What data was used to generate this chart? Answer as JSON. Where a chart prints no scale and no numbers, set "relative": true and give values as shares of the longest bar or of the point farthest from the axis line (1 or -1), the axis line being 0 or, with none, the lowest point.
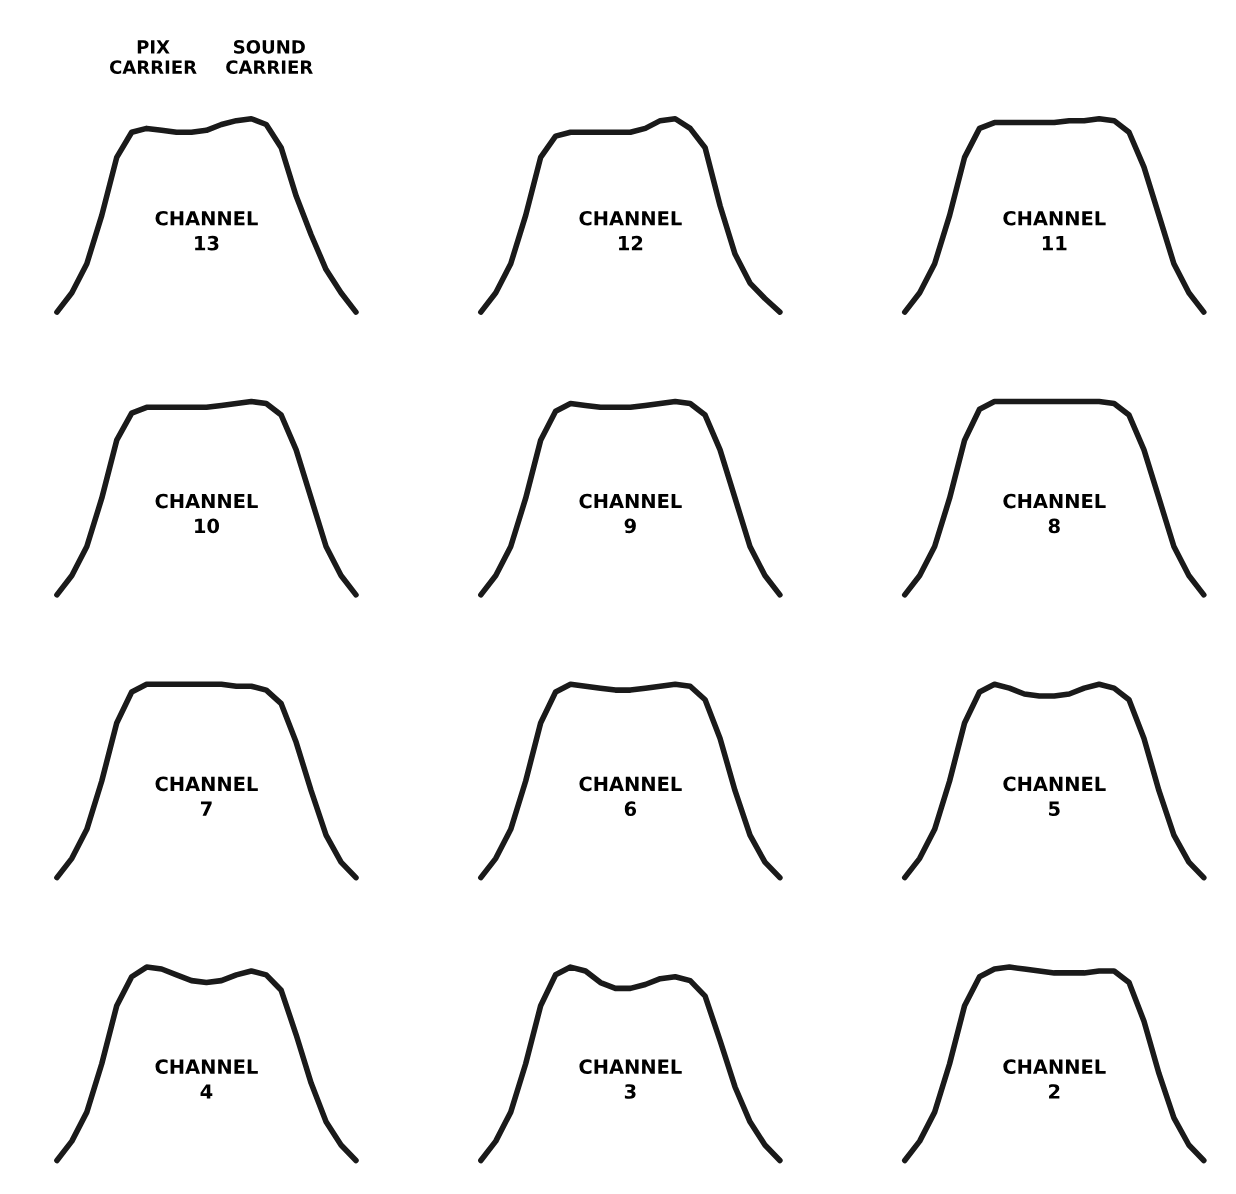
{
  "chart_data": [
    {
      "type": "line",
      "relative": true,
      "color": "#1a1a1a",
      "categories": [
        null,
        null,
        null,
        null,
        null,
        null,
        null,
        null,
        null,
        null,
        null,
        null,
        null,
        null,
        null,
        null,
        null,
        null,
        null,
        null,
        null
      ],
      "values": [
        0,
        0.1,
        0.25,
        0.5,
        0.8,
        0.93,
        0.95,
        0.94,
        0.93,
        0.93,
        0.94,
        0.97,
        0.99,
        1.0,
        0.97,
        0.85,
        0.6,
        0.4,
        0.22,
        0.1,
        0
      ],
      "annotations": [
        "PIX\nCARRIER",
        "SOUND\nCARRIER",
        "CHANNEL",
        "13"
      ]
    },
    {
      "type": "line",
      "relative": true,
      "color": "#1a1a1a",
      "categories": [
        null,
        null,
        null,
        null,
        null,
        null,
        null,
        null,
        null,
        null,
        null,
        null,
        null,
        null,
        null,
        null,
        null,
        null,
        null,
        null,
        null
      ],
      "values": [
        0,
        0.1,
        0.25,
        0.5,
        0.8,
        0.91,
        0.93,
        0.93,
        0.93,
        0.93,
        0.93,
        0.95,
        0.99,
        1.0,
        0.95,
        0.85,
        0.55,
        0.3,
        0.15,
        0.07,
        0
      ],
      "annotations": [
        "CHANNEL",
        "12"
      ]
    },
    {
      "type": "line",
      "relative": true,
      "color": "#1a1a1a",
      "categories": [
        null,
        null,
        null,
        null,
        null,
        null,
        null,
        null,
        null,
        null,
        null,
        null,
        null,
        null,
        null,
        null,
        null,
        null,
        null,
        null,
        null
      ],
      "values": [
        0,
        0.1,
        0.25,
        0.5,
        0.8,
        0.95,
        0.98,
        0.98,
        0.98,
        0.98,
        0.98,
        0.99,
        0.99,
        1.0,
        0.99,
        0.93,
        0.75,
        0.5,
        0.25,
        0.1,
        0
      ],
      "annotations": [
        "CHANNEL",
        "11"
      ]
    },
    {
      "type": "line",
      "relative": true,
      "color": "#1a1a1a",
      "categories": [
        null,
        null,
        null,
        null,
        null,
        null,
        null,
        null,
        null,
        null,
        null,
        null,
        null,
        null,
        null,
        null,
        null,
        null,
        null,
        null,
        null
      ],
      "values": [
        0,
        0.1,
        0.25,
        0.5,
        0.8,
        0.94,
        0.97,
        0.97,
        0.97,
        0.97,
        0.97,
        0.98,
        0.99,
        1.0,
        0.99,
        0.93,
        0.75,
        0.5,
        0.25,
        0.1,
        0
      ],
      "annotations": [
        "CHANNEL",
        "10"
      ]
    },
    {
      "type": "line",
      "relative": true,
      "color": "#1a1a1a",
      "categories": [
        null,
        null,
        null,
        null,
        null,
        null,
        null,
        null,
        null,
        null,
        null,
        null,
        null,
        null,
        null,
        null,
        null,
        null,
        null,
        null,
        null
      ],
      "values": [
        0,
        0.1,
        0.25,
        0.5,
        0.8,
        0.95,
        0.99,
        0.98,
        0.97,
        0.97,
        0.97,
        0.98,
        0.99,
        1.0,
        0.99,
        0.93,
        0.75,
        0.5,
        0.25,
        0.1,
        0
      ],
      "annotations": [
        "CHANNEL",
        "9"
      ]
    },
    {
      "type": "line",
      "relative": true,
      "color": "#1a1a1a",
      "categories": [
        null,
        null,
        null,
        null,
        null,
        null,
        null,
        null,
        null,
        null,
        null,
        null,
        null,
        null,
        null,
        null,
        null,
        null,
        null,
        null,
        null
      ],
      "values": [
        0,
        0.1,
        0.25,
        0.5,
        0.8,
        0.96,
        1.0,
        1.0,
        1.0,
        1.0,
        1.0,
        1.0,
        1.0,
        1.0,
        0.99,
        0.93,
        0.75,
        0.5,
        0.25,
        0.1,
        0
      ],
      "annotations": [
        "CHANNEL",
        "8"
      ]
    },
    {
      "type": "line",
      "relative": true,
      "color": "#1a1a1a",
      "categories": [
        null,
        null,
        null,
        null,
        null,
        null,
        null,
        null,
        null,
        null,
        null,
        null,
        null,
        null,
        null,
        null,
        null,
        null,
        null,
        null,
        null
      ],
      "values": [
        0,
        0.1,
        0.25,
        0.5,
        0.8,
        0.96,
        1.0,
        1.0,
        1.0,
        1.0,
        1.0,
        1.0,
        0.99,
        0.99,
        0.97,
        0.9,
        0.7,
        0.45,
        0.22,
        0.08,
        0
      ],
      "annotations": [
        "CHANNEL",
        "7"
      ]
    },
    {
      "type": "line",
      "relative": true,
      "color": "#1a1a1a",
      "categories": [
        null,
        null,
        null,
        null,
        null,
        null,
        null,
        null,
        null,
        null,
        null,
        null,
        null,
        null,
        null,
        null,
        null,
        null,
        null,
        null,
        null
      ],
      "values": [
        0,
        0.1,
        0.25,
        0.5,
        0.8,
        0.96,
        1.0,
        0.99,
        0.98,
        0.97,
        0.97,
        0.98,
        0.99,
        1.0,
        0.99,
        0.92,
        0.72,
        0.45,
        0.22,
        0.08,
        0
      ],
      "annotations": [
        "CHANNEL",
        "6"
      ]
    },
    {
      "type": "line",
      "relative": true,
      "color": "#1a1a1a",
      "categories": [
        null,
        null,
        null,
        null,
        null,
        null,
        null,
        null,
        null,
        null,
        null,
        null,
        null,
        null,
        null,
        null,
        null,
        null,
        null,
        null,
        null
      ],
      "values": [
        0,
        0.1,
        0.25,
        0.5,
        0.8,
        0.96,
        1.0,
        0.98,
        0.95,
        0.94,
        0.94,
        0.95,
        0.98,
        1.0,
        0.98,
        0.92,
        0.72,
        0.45,
        0.22,
        0.08,
        0
      ],
      "annotations": [
        "CHANNEL",
        "5"
      ]
    },
    {
      "type": "line",
      "relative": true,
      "color": "#1a1a1a",
      "categories": [
        null,
        null,
        null,
        null,
        null,
        null,
        null,
        null,
        null,
        null,
        null,
        null,
        null,
        null,
        null,
        null,
        null,
        null,
        null,
        null,
        null
      ],
      "values": [
        0,
        0.1,
        0.25,
        0.5,
        0.8,
        0.95,
        1.0,
        0.99,
        0.96,
        0.93,
        0.92,
        0.93,
        0.96,
        0.98,
        0.96,
        0.88,
        0.65,
        0.4,
        0.2,
        0.08,
        0
      ],
      "annotations": [
        "CHANNEL",
        "4"
      ]
    },
    {
      "type": "line",
      "relative": true,
      "color": "#1a1a1a",
      "categories": [
        null,
        null,
        null,
        null,
        null,
        null,
        null,
        null,
        null,
        null,
        null,
        null,
        null,
        null,
        null,
        null,
        null,
        null,
        null,
        null,
        null
      ],
      "values": [
        0,
        0.1,
        0.25,
        0.5,
        0.8,
        0.96,
        1.0,
        0.98,
        0.92,
        0.89,
        0.89,
        0.91,
        0.94,
        0.95,
        0.93,
        0.85,
        0.62,
        0.38,
        0.2,
        0.08,
        0
      ],
      "annotations": [
        "CHANNEL",
        "3"
      ]
    },
    {
      "type": "line",
      "relative": true,
      "color": "#1a1a1a",
      "categories": [
        null,
        null,
        null,
        null,
        null,
        null,
        null,
        null,
        null,
        null,
        null,
        null,
        null,
        null,
        null,
        null,
        null,
        null,
        null,
        null,
        null
      ],
      "values": [
        0,
        0.1,
        0.25,
        0.5,
        0.8,
        0.95,
        0.99,
        1.0,
        0.99,
        0.98,
        0.97,
        0.97,
        0.97,
        0.98,
        0.98,
        0.92,
        0.72,
        0.45,
        0.22,
        0.08,
        0
      ],
      "annotations": [
        "CHANNEL",
        "2"
      ]
    }
  ]
}
